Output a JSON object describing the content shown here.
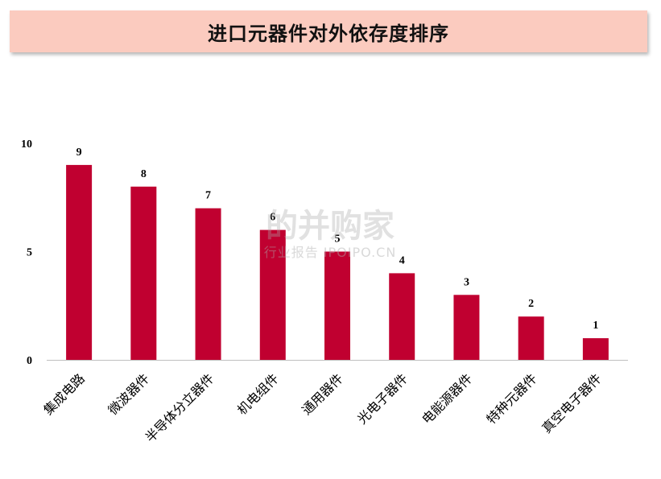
{
  "title": "进口元器件对外依存度排序",
  "watermark": {
    "main": "的并购家",
    "sub": "行业报告 IPOIPO.CN"
  },
  "colors": {
    "bar": "#c00030",
    "title_bg": "#fbcbbf",
    "axis": "#bfbfbf"
  },
  "chart_data": {
    "type": "bar",
    "title": "进口元器件对外依存度排序",
    "categories": [
      "集成电路",
      "微波器件",
      "半导体分立器件",
      "机电组件",
      "通用器件",
      "光电子器件",
      "电能源器件",
      "特种元器件",
      "真空电子器件"
    ],
    "values": [
      9,
      8,
      7,
      6,
      5,
      4,
      3,
      2,
      1
    ],
    "ylim": [
      0,
      10
    ],
    "yticks": [
      0,
      5,
      10
    ],
    "xlabel": "",
    "ylabel": "",
    "grid": false,
    "legend": "none"
  }
}
